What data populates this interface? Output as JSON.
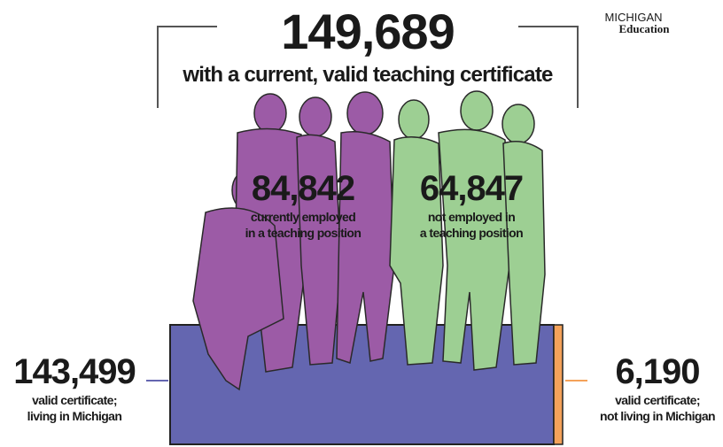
{
  "header": {
    "total": "149,689",
    "subtitle": "with a current, valid teaching certificate"
  },
  "logo": {
    "state": "MICHIGAN",
    "department": "Education"
  },
  "employed": {
    "number": "84,842",
    "line1": "currently employed",
    "line2": "in a teaching position"
  },
  "not_employed": {
    "number": "64,847",
    "line1": "not employed in",
    "line2": "a teaching position"
  },
  "in_state": {
    "number": "143,499",
    "line1": "valid certificate;",
    "line2": "living in Michigan"
  },
  "out_of_state": {
    "number": "6,190",
    "line1": "valid certificate;",
    "line2": "not living in Michigan"
  }
}
